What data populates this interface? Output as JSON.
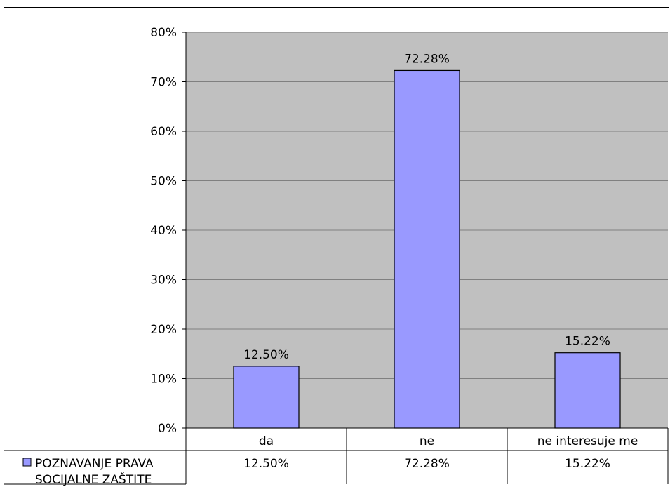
{
  "chart_data": {
    "type": "bar",
    "categories": [
      "da",
      "ne",
      "ne interesuje me"
    ],
    "series": [
      {
        "name": "POZNAVANJE PRAVA SOCIJALNE ZAŠTITE",
        "values": [
          12.5,
          72.28,
          15.22
        ]
      }
    ],
    "data_labels": [
      "12.50%",
      "72.28%",
      "15.22%"
    ],
    "ylim": [
      0,
      80
    ],
    "yticks": [
      "0%",
      "10%",
      "20%",
      "30%",
      "40%",
      "50%",
      "60%",
      "70%",
      "80%"
    ],
    "grid": true,
    "legend": "in data table",
    "legend_lines": [
      "POZNAVANJE PRAVA",
      "SOCIJALNE ZAŠTITE"
    ],
    "colors": {
      "bar": "#9999ff",
      "plot_background": "#c0c0c0",
      "gridline": "#808080"
    }
  }
}
